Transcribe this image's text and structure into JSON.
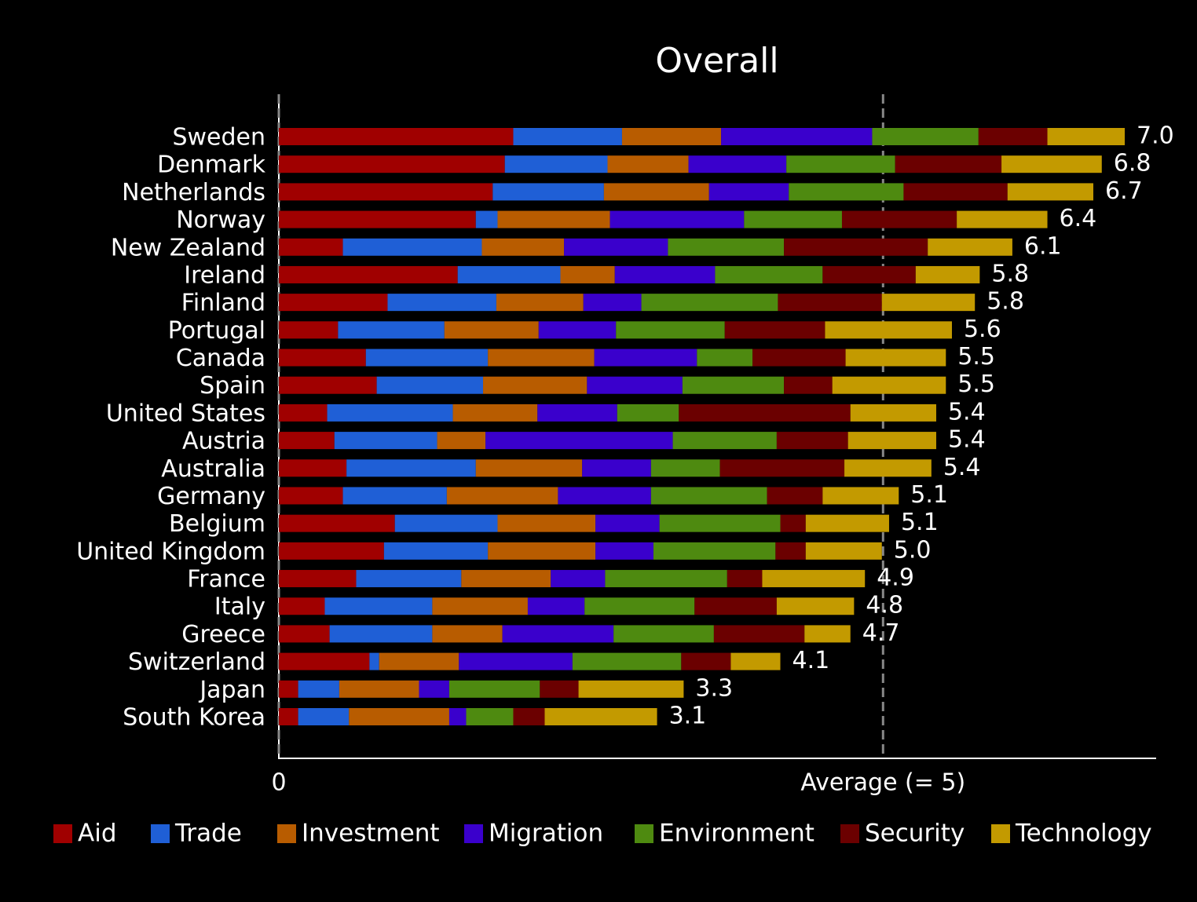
{
  "chart_data": {
    "type": "stacked-barh",
    "title": "Overall",
    "categories": [
      "Sweden",
      "Denmark",
      "Netherlands",
      "Norway",
      "New Zealand",
      "Ireland",
      "Finland",
      "Portugal",
      "Canada",
      "Spain",
      "United States",
      "Austria",
      "Australia",
      "Germany",
      "Belgium",
      "United Kingdom",
      "France",
      "Italy",
      "Greece",
      "Switzerland",
      "Japan",
      "South Korea"
    ],
    "series": [
      {
        "name": "Aid",
        "color": "#a00000",
        "values": [
          1.94,
          1.87,
          1.77,
          1.63,
          0.53,
          1.48,
          0.9,
          0.49,
          0.72,
          0.81,
          0.4,
          0.46,
          0.56,
          0.53,
          0.96,
          0.87,
          0.64,
          0.38,
          0.42,
          0.75,
          0.16,
          0.16
        ]
      },
      {
        "name": "Trade",
        "color": "#1f5fd6",
        "values": [
          0.9,
          0.85,
          0.92,
          0.18,
          1.15,
          0.85,
          0.9,
          0.88,
          1.01,
          0.88,
          1.04,
          0.85,
          1.07,
          0.86,
          0.85,
          0.86,
          0.87,
          0.89,
          0.85,
          0.08,
          0.34,
          0.42
        ]
      },
      {
        "name": "Investment",
        "color": "#b85c00",
        "values": [
          0.82,
          0.67,
          0.87,
          0.93,
          0.68,
          0.45,
          0.72,
          0.78,
          0.88,
          0.86,
          0.7,
          0.4,
          0.88,
          0.92,
          0.81,
          0.89,
          0.74,
          0.79,
          0.58,
          0.66,
          0.66,
          0.83
        ]
      },
      {
        "name": "Migration",
        "color": "#3a00cc",
        "values": [
          1.25,
          0.81,
          0.66,
          1.11,
          0.86,
          0.83,
          0.48,
          0.64,
          0.85,
          0.79,
          0.66,
          1.55,
          0.57,
          0.77,
          0.53,
          0.48,
          0.45,
          0.47,
          0.92,
          0.94,
          0.25,
          0.14
        ]
      },
      {
        "name": "Environment",
        "color": "#4e8a10",
        "values": [
          0.88,
          0.9,
          0.95,
          0.81,
          0.96,
          0.89,
          1.13,
          0.9,
          0.46,
          0.84,
          0.51,
          0.86,
          0.57,
          0.96,
          1.0,
          1.01,
          1.01,
          0.91,
          0.83,
          0.9,
          0.75,
          0.39
        ]
      },
      {
        "name": "Security",
        "color": "#6b0000",
        "values": [
          0.57,
          0.88,
          0.86,
          0.95,
          1.19,
          0.77,
          0.86,
          0.83,
          0.77,
          0.4,
          1.42,
          0.59,
          1.03,
          0.46,
          0.21,
          0.25,
          0.29,
          0.68,
          0.75,
          0.41,
          0.32,
          0.26
        ]
      },
      {
        "name": "Technology",
        "color": "#c39a00",
        "values": [
          0.64,
          0.83,
          0.71,
          0.75,
          0.7,
          0.53,
          0.77,
          1.05,
          0.83,
          0.94,
          0.71,
          0.73,
          0.72,
          0.63,
          0.69,
          0.63,
          0.85,
          0.64,
          0.38,
          0.41,
          0.87,
          0.93
        ]
      }
    ],
    "totals": [
      7.0,
      6.8,
      6.7,
      6.4,
      6.1,
      5.8,
      5.8,
      5.6,
      5.5,
      5.5,
      5.4,
      5.4,
      5.4,
      5.1,
      5.1,
      5.0,
      4.9,
      4.8,
      4.7,
      4.1,
      3.3,
      3.1
    ],
    "total_labels": [
      "7.0",
      "6.8",
      "6.7",
      "6.4",
      "6.1",
      "5.8",
      "5.8",
      "5.6",
      "5.5",
      "5.5",
      "5.4",
      "5.4",
      "5.4",
      "5.1",
      "5.1",
      "5.0",
      "4.9",
      "4.8",
      "4.7",
      "4.1",
      "3.3",
      "3.1"
    ],
    "xlim": [
      0,
      7.26
    ],
    "xticks": [
      0,
      {
        "value": 5,
        "label": "Average (= 5)"
      }
    ],
    "grid": "dashed",
    "legend": "bottom"
  }
}
